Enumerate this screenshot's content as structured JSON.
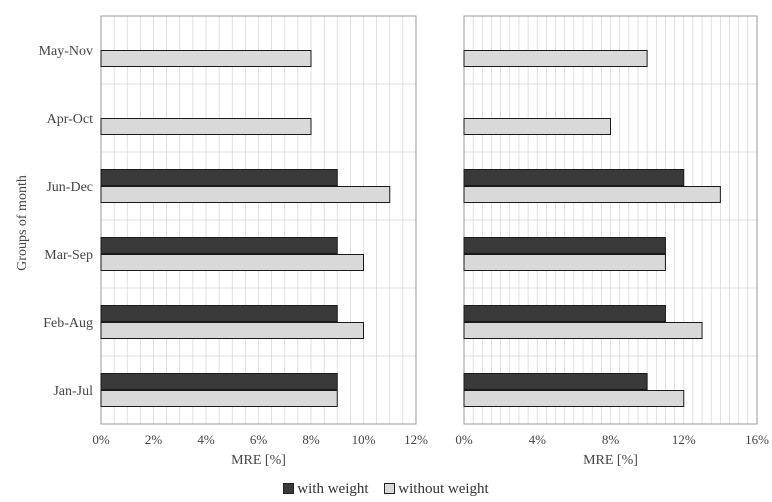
{
  "chart_data": [
    {
      "type": "bar",
      "orientation": "horizontal",
      "categories": [
        "May-Nov",
        "Apr-Oct",
        "Jun-Dec",
        "Mar-Sep",
        "Feb-Aug",
        "Jan-Jul"
      ],
      "series": [
        {
          "name": "with weight",
          "values": [
            null,
            null,
            9,
            9,
            9,
            9
          ]
        },
        {
          "name": "without weight",
          "values": [
            8,
            8,
            11,
            10,
            10,
            9
          ]
        }
      ],
      "ylabel": "Groups of month",
      "xlabel": "MRE [%]",
      "xlim": [
        0,
        12
      ],
      "xticks": [
        "0%",
        "2%",
        "4%",
        "6%",
        "8%",
        "10%",
        "12%"
      ],
      "grid": "vertical minor gridlines, horizontal category separators"
    },
    {
      "type": "bar",
      "orientation": "horizontal",
      "categories": [
        "May-Nov",
        "Apr-Oct",
        "Jun-Dec",
        "Mar-Sep",
        "Feb-Aug",
        "Jan-Jul"
      ],
      "series": [
        {
          "name": "with weight",
          "values": [
            null,
            null,
            12,
            11,
            11,
            10
          ]
        },
        {
          "name": "without weight",
          "values": [
            10,
            8,
            14,
            11,
            13,
            12
          ]
        }
      ],
      "xlabel": "MRE [%]",
      "xlim": [
        0,
        16
      ],
      "xticks": [
        "0%",
        "4%",
        "8%",
        "12%",
        "16%"
      ],
      "grid": "vertical minor gridlines, horizontal category separators"
    }
  ],
  "legend": {
    "items": [
      {
        "label": "with weight",
        "color": "#3a3a3a"
      },
      {
        "label": "without weight",
        "color": "#d9d9d9"
      }
    ]
  },
  "colors": {
    "with_weight": "#3a3a3a",
    "without_weight": "#d9d9d9",
    "border": "#1a1a1a",
    "grid": "#d4d4d4",
    "frame": "#9a9a9a"
  }
}
